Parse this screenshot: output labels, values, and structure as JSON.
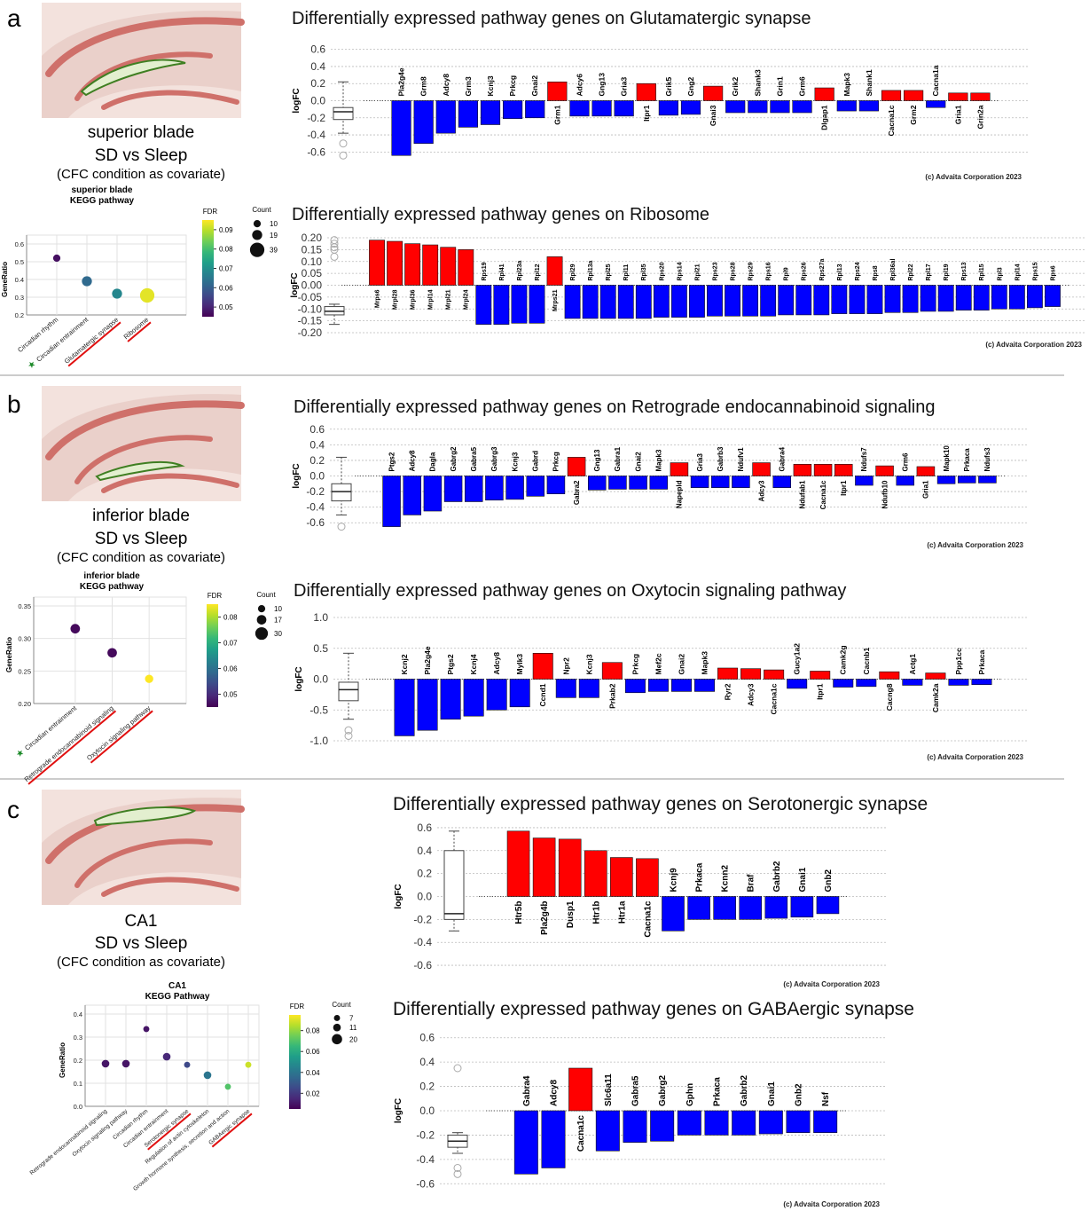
{
  "panels": [
    {
      "label": "a",
      "region": "superior blade",
      "comparison": "SD vs Sleep",
      "covariate": "(CFC condition as covariate)"
    },
    {
      "label": "b",
      "region": "inferior blade",
      "comparison": "SD vs Sleep",
      "covariate": "(CFC condition as covariate)"
    },
    {
      "label": "c",
      "region": "CA1",
      "comparison": "SD vs Sleep",
      "covariate": "(CFC condition as covariate)"
    }
  ],
  "chart_data": [
    {
      "type": "bar",
      "title": "Differentially expressed pathway genes on Glutamatergic synapse",
      "ylabel": "logFC",
      "categories": [
        "Pla2g4e",
        "Grm8",
        "Adcy8",
        "Grm3",
        "Kcnj3",
        "Prkcg",
        "Gnai2",
        "Grm1",
        "Adcy6",
        "Gng13",
        "Gria3",
        "Itpr1",
        "Grik5",
        "Gng2",
        "Gnai3",
        "Grik2",
        "Shank3",
        "Grin1",
        "Grm6",
        "Dlgap1",
        "Mapk3",
        "Shank1",
        "Cacna1c",
        "Grm2",
        "Cacna1a",
        "Gria1",
        "Grin2a"
      ],
      "values": [
        -0.64,
        -0.5,
        -0.38,
        -0.31,
        -0.28,
        -0.21,
        -0.2,
        0.22,
        -0.18,
        -0.18,
        -0.18,
        0.2,
        -0.17,
        -0.16,
        0.17,
        -0.14,
        -0.14,
        -0.14,
        -0.14,
        0.15,
        -0.12,
        -0.12,
        0.12,
        0.12,
        -0.08,
        0.09,
        0.09
      ],
      "color_up": "#ff0000",
      "color_down": "#0000ff",
      "box": {
        "whishi": 0.22,
        "q3": -0.08,
        "med": -0.13,
        "q1": -0.22,
        "whislo": -0.38,
        "fliers": [
          -0.5,
          -0.64
        ]
      },
      "ylim": [
        -0.7,
        0.7
      ],
      "yticks": [
        0.6,
        0.4,
        0.2,
        {
          "value": 0,
          "label": "0.0"
        },
        -0.2,
        -0.4,
        -0.6
      ],
      "grid": true,
      "note": "(c) Advaita Corporation 2023"
    },
    {
      "type": "bar",
      "title": "Differentially expressed pathway genes on Ribosome",
      "ylabel": "logFC",
      "categories": [
        "Mrps6",
        "Mrpl28",
        "Mrpl36",
        "Mrpl14",
        "Mrpl21",
        "Mrpl24",
        "Rps19",
        "Rpl41",
        "Rpl23a",
        "Rpl12",
        "Mrps21",
        "Rpl29",
        "Rpl13a",
        "Rpl25",
        "Rpl11",
        "Rpl35",
        "Rps20",
        "Rps14",
        "Rpl21",
        "Rps23",
        "Rps28",
        "Rps29",
        "Rps16",
        "Rpl9",
        "Rps26",
        "Rps27a",
        "Rpl13",
        "Rps24",
        "Rps8",
        "Rpl36al",
        "Rpl22",
        "Rpl17",
        "Rpl19",
        "Rps13",
        "Rpl15",
        "Rpl3",
        "Rpl14",
        "Rps15",
        "Rps6"
      ],
      "values": [
        0.19,
        0.185,
        0.175,
        0.17,
        0.16,
        0.15,
        -0.165,
        -0.165,
        -0.16,
        -0.16,
        0.12,
        -0.14,
        -0.14,
        -0.14,
        -0.14,
        -0.14,
        -0.135,
        -0.135,
        -0.135,
        -0.13,
        -0.13,
        -0.13,
        -0.13,
        -0.125,
        -0.125,
        -0.125,
        -0.12,
        -0.12,
        -0.12,
        -0.115,
        -0.115,
        -0.11,
        -0.11,
        -0.105,
        -0.105,
        -0.1,
        -0.1,
        -0.095,
        -0.09
      ],
      "color_up": "#ff0000",
      "color_down": "#0000ff",
      "box": {
        "whishi": -0.08,
        "q3": -0.09,
        "med": -0.11,
        "q1": -0.125,
        "whislo": -0.165,
        "fliers": [
          0.19,
          0.175,
          0.16,
          0.15,
          0.12
        ]
      },
      "ylim": [
        -0.2,
        0.2
      ],
      "yticks": [
        {
          "value": 0.2,
          "label": "0.20"
        },
        0.15,
        {
          "value": 0.1,
          "label": "0.10"
        },
        0.05,
        {
          "value": 0,
          "label": "0.00"
        },
        -0.05,
        {
          "value": -0.1,
          "label": "-0.10"
        },
        -0.15,
        {
          "value": -0.2,
          "label": "-0.20"
        }
      ],
      "grid": true,
      "note": "(c) Advaita Corporation 2023"
    },
    {
      "type": "bar",
      "title": "Differentially expressed pathway genes on Retrograde endocannabinoid signaling",
      "ylabel": "logFC",
      "categories": [
        "Ptgs2",
        "Adcy8",
        "Dagla",
        "Gabrg2",
        "Gabra5",
        "Gabrg3",
        "Kcnj3",
        "Gabrd",
        "Prkcg",
        "Gabra2",
        "Gng13",
        "Gabra1",
        "Gnai2",
        "Mapk3",
        "Napepld",
        "Gria3",
        "Gabrb3",
        "Ndufv1",
        "Adcy3",
        "Gabra4",
        "Ndufab1",
        "Cacna1c",
        "Itpr1",
        "Ndufs7",
        "Ndufb10",
        "Grm6",
        "Gria1",
        "Mapk10",
        "Prkaca",
        "Ndufs3"
      ],
      "values": [
        -0.65,
        -0.5,
        -0.45,
        -0.33,
        -0.33,
        -0.31,
        -0.3,
        -0.26,
        -0.23,
        0.24,
        -0.18,
        -0.17,
        -0.17,
        -0.17,
        0.17,
        -0.15,
        -0.15,
        -0.15,
        0.17,
        -0.15,
        0.15,
        0.15,
        0.15,
        -0.12,
        0.13,
        -0.12,
        0.12,
        -0.1,
        -0.09,
        -0.09
      ],
      "color_up": "#ff0000",
      "color_down": "#0000ff",
      "box": {
        "whishi": 0.24,
        "q3": -0.1,
        "med": -0.2,
        "q1": -0.32,
        "whislo": -0.5,
        "fliers": [
          -0.65
        ]
      },
      "ylim": [
        -0.7,
        0.7
      ],
      "yticks": [
        0.6,
        0.4,
        0.2,
        {
          "value": 0,
          "label": "0.0"
        },
        -0.2,
        -0.4,
        -0.6
      ],
      "grid": true,
      "note": "(c) Advaita Corporation 2023"
    },
    {
      "type": "bar",
      "title": "Differentially expressed pathway genes on Oxytocin signaling pathway",
      "ylabel": "logFC",
      "categories": [
        "Kcnj2",
        "Pla2g4e",
        "Ptgs2",
        "Kcnj4",
        "Adcy8",
        "Mylk3",
        "Ccnd1",
        "Npr2",
        "Kcnj3",
        "Prkab2",
        "Prkcg",
        "Mef2c",
        "Gnai2",
        "Mapk3",
        "Ryr2",
        "Adcy3",
        "Cacna1c",
        "Gucy1a2",
        "Itpr1",
        "Camk2g",
        "Cacnb1",
        "Cacng8",
        "Actg1",
        "Camk2a",
        "Ppp1cc",
        "Prkaca"
      ],
      "values": [
        -0.92,
        -0.83,
        -0.65,
        -0.6,
        -0.5,
        -0.45,
        0.42,
        -0.3,
        -0.3,
        0.27,
        -0.22,
        -0.2,
        -0.2,
        -0.2,
        0.18,
        0.17,
        0.15,
        -0.15,
        0.13,
        -0.13,
        -0.12,
        0.12,
        -0.1,
        0.1,
        -0.1,
        -0.09
      ],
      "color_up": "#ff0000",
      "color_down": "#0000ff",
      "box": {
        "whishi": 0.42,
        "q3": -0.05,
        "med": -0.17,
        "q1": -0.35,
        "whislo": -0.65,
        "fliers": [
          -0.83,
          -0.92
        ]
      },
      "ylim": [
        -1,
        1
      ],
      "yticks": [
        {
          "value": 1,
          "label": "1.0"
        },
        0.5,
        {
          "value": 0,
          "label": "0.0"
        },
        -0.5,
        {
          "value": -1,
          "label": "-1.0"
        }
      ],
      "grid": true,
      "note": "(c) Advaita Corporation 2023"
    },
    {
      "type": "bar",
      "title": "Differentially expressed pathway genes on Serotonergic synapse",
      "ylabel": "logFC",
      "categories": [
        "Htr5b",
        "Pla2g4b",
        "Dusp1",
        "Htr1b",
        "Htr1a",
        "Cacna1c",
        "Kcnj9",
        "Prkaca",
        "Kcnn2",
        "Braf",
        "Gabrb2",
        "Gnai1",
        "Gnb2"
      ],
      "values": [
        0.57,
        0.51,
        0.5,
        0.4,
        0.34,
        0.33,
        -0.3,
        -0.2,
        -0.2,
        -0.2,
        -0.19,
        -0.18,
        -0.15
      ],
      "color_up": "#ff0000",
      "color_down": "#0000ff",
      "box": {
        "whishi": 0.57,
        "q3": 0.4,
        "med": -0.15,
        "q1": -0.2,
        "whislo": -0.3
      },
      "ylim": [
        -0.7,
        0.7
      ],
      "yticks": [
        0.6,
        0.4,
        0.2,
        {
          "value": 0,
          "label": "0.0"
        },
        -0.2,
        -0.4,
        -0.6
      ],
      "grid": true,
      "note": "(c) Advaita Corporation 2023"
    },
    {
      "type": "bar",
      "title": "Differentially expressed pathway genes on GABAergic synapse",
      "ylabel": "logFC",
      "categories": [
        "Gabra4",
        "Adcy8",
        "Cacna1c",
        "Slc6a11",
        "Gabra5",
        "Gabrg2",
        "Gphn",
        "Prkaca",
        "Gabrb2",
        "Gnai1",
        "Gnb2",
        "Nsf"
      ],
      "values": [
        -0.52,
        -0.47,
        0.35,
        -0.33,
        -0.26,
        -0.25,
        -0.2,
        -0.2,
        -0.2,
        -0.19,
        -0.18,
        -0.18
      ],
      "color_up": "#ff0000",
      "color_down": "#0000ff",
      "box": {
        "whishi": -0.18,
        "q3": -0.2,
        "med": -0.25,
        "q1": -0.3,
        "whislo": -0.35,
        "fliers": [
          0.35,
          -0.47,
          -0.52
        ]
      },
      "ylim": [
        -0.7,
        0.7
      ],
      "yticks": [
        0.6,
        0.4,
        0.2,
        {
          "value": 0,
          "label": "0.0"
        },
        -0.2,
        -0.4,
        -0.6
      ],
      "grid": true,
      "note": "(c) Advaita Corporation 2023"
    },
    {
      "type": "dot",
      "title": [
        "superior blade",
        "KEGG pathway"
      ],
      "ylabel": "GeneRatio",
      "categories": [
        "Circadian rhythm",
        "Circadian entrainment",
        "Glutamatergic synapse",
        "Ribosome"
      ],
      "values": [
        0.52,
        0.39,
        0.32,
        0.31
      ],
      "sizes": [
        10,
        19,
        19,
        39
      ],
      "fdr": [
        0.047,
        0.062,
        0.068,
        0.093
      ],
      "ylim": [
        0.2,
        0.6
      ],
      "yticks": [
        0.2,
        0.3,
        0.4,
        0.5,
        0.6
      ],
      "grid": true,
      "colorbar": {
        "title": "FDR",
        "lim": [
          0.045,
          0.095
        ],
        "ticks": [
          0.05,
          0.06,
          0.07,
          0.08,
          0.09
        ]
      },
      "size_legend": {
        "title": "Count",
        "values": [
          10,
          19,
          39
        ]
      },
      "underlined": [
        2,
        3
      ],
      "starred": [
        1
      ]
    },
    {
      "type": "dot",
      "title": [
        "inferior blade",
        "KEGG pathway"
      ],
      "ylabel": "GeneRatio",
      "categories": [
        "Circadian entrainment",
        "Retrograde endocannabinoid signaling",
        "Oxytocin signaling pathway"
      ],
      "values": [
        0.315,
        0.278,
        0.238
      ],
      "sizes": [
        17,
        17,
        13
      ],
      "fdr": [
        0.046,
        0.046,
        0.085
      ],
      "ylim": [
        0.2,
        0.35
      ],
      "yticks": [
        {
          "value": 0.2,
          "label": "0.20"
        },
        0.25,
        {
          "value": 0.3,
          "label": "0.30"
        },
        0.35
      ],
      "grid": true,
      "colorbar": {
        "title": "FDR",
        "lim": [
          0.045,
          0.085
        ],
        "ticks": [
          0.05,
          0.06,
          0.07,
          0.08
        ]
      },
      "size_legend": {
        "title": "Count",
        "values": [
          10,
          17,
          30
        ]
      },
      "underlined": [
        1,
        2
      ],
      "starred": [
        0
      ]
    },
    {
      "type": "dot",
      "title": [
        "CA1",
        "KEGG Pathway"
      ],
      "ylabel": "GeneRatio",
      "categories": [
        "Retrograde endocannabinoid signaling",
        "Oxytocin signaling pathway",
        "Circadian rhythm",
        "Circadian entrainment",
        "Serotonergic synapse",
        "Regulation of actin cytoskeleton",
        "Growth hormone synthesis, secretion and action",
        "GABAergic synapse"
      ],
      "values": [
        0.185,
        0.185,
        0.335,
        0.215,
        0.18,
        0.135,
        0.085,
        0.18
      ],
      "sizes": [
        11,
        11,
        7,
        11,
        7,
        11,
        7,
        7
      ],
      "fdr": [
        0.01,
        0.01,
        0.01,
        0.015,
        0.025,
        0.04,
        0.07,
        0.088
      ],
      "ylim": [
        0,
        0.4
      ],
      "yticks": [
        {
          "value": 0,
          "label": "0.0"
        },
        0.1,
        0.2,
        0.3,
        0.4
      ],
      "grid": true,
      "colorbar": {
        "title": "FDR",
        "lim": [
          0.005,
          0.095
        ],
        "ticks": [
          0.02,
          0.04,
          0.06,
          0.08
        ]
      },
      "size_legend": {
        "title": "Count",
        "values": [
          7,
          11,
          20
        ]
      },
      "underlined": [
        4,
        7
      ],
      "starred": []
    }
  ]
}
